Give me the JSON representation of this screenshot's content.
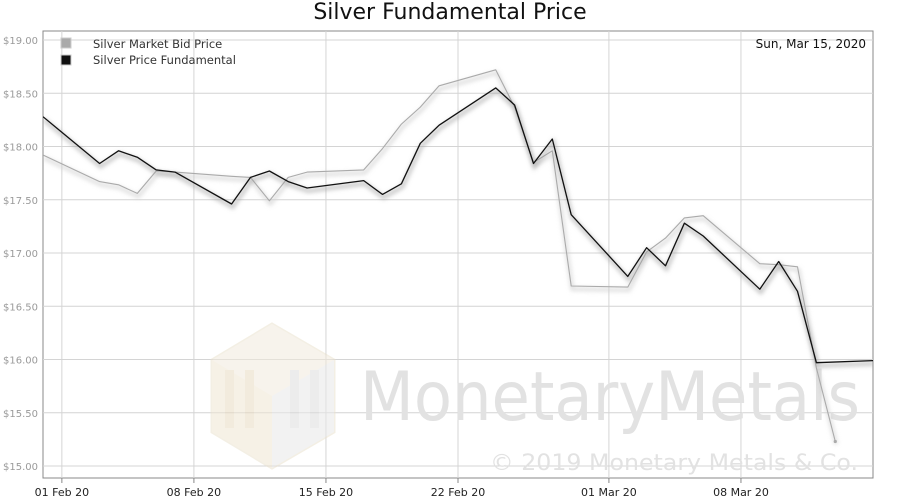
{
  "chart_data": {
    "type": "line",
    "title": "Silver Fundamental Price",
    "date_label": "Sun, Mar 15, 2020",
    "watermark": {
      "brand": "MonetaryMetals",
      "copyright": "© 2019 Monetary Metals & Co."
    },
    "ylim": [
      15.0,
      19.0
    ],
    "yticks": [
      "$15.00",
      "$15.50",
      "$16.00",
      "$16.50",
      "$17.00",
      "$17.50",
      "$18.00",
      "$18.50",
      "$19.00"
    ],
    "ytick_values": [
      15.0,
      15.5,
      16.0,
      16.5,
      17.0,
      17.5,
      18.0,
      18.5,
      19.0
    ],
    "xlim": [
      "2020-01-31",
      "2020-03-15"
    ],
    "xticks": [
      {
        "label": "01 Feb 20",
        "date": "2020-02-01"
      },
      {
        "label": "08 Feb 20",
        "date": "2020-02-08"
      },
      {
        "label": "15 Feb 20",
        "date": "2020-02-15"
      },
      {
        "label": "22 Feb 20",
        "date": "2020-02-22"
      },
      {
        "label": "01 Mar 20",
        "date": "2020-03-01"
      },
      {
        "label": "08 Mar 20",
        "date": "2020-03-08"
      }
    ],
    "legend_position": "top-left",
    "series": [
      {
        "name": "Silver Market Bid Price",
        "color": "#aaaaaa",
        "points": [
          [
            "2020-01-31",
            17.92
          ],
          [
            "2020-02-03",
            17.67
          ],
          [
            "2020-02-04",
            17.64
          ],
          [
            "2020-02-05",
            17.56
          ],
          [
            "2020-02-06",
            17.77
          ],
          [
            "2020-02-07",
            17.76
          ],
          [
            "2020-02-10",
            17.72
          ],
          [
            "2020-02-11",
            17.71
          ],
          [
            "2020-02-12",
            17.49
          ],
          [
            "2020-02-13",
            17.71
          ],
          [
            "2020-02-14",
            17.76
          ],
          [
            "2020-02-17",
            17.78
          ],
          [
            "2020-02-18",
            17.98
          ],
          [
            "2020-02-19",
            18.21
          ],
          [
            "2020-02-20",
            18.37
          ],
          [
            "2020-02-21",
            18.57
          ],
          [
            "2020-02-24",
            18.72
          ],
          [
            "2020-02-25",
            18.37
          ],
          [
            "2020-02-26",
            17.85
          ],
          [
            "2020-02-27",
            17.96
          ],
          [
            "2020-02-28",
            16.69
          ],
          [
            "2020-03-02",
            16.68
          ],
          [
            "2020-03-03",
            17.01
          ],
          [
            "2020-03-04",
            17.14
          ],
          [
            "2020-03-05",
            17.33
          ],
          [
            "2020-03-06",
            17.35
          ],
          [
            "2020-03-09",
            16.9
          ],
          [
            "2020-03-10",
            16.89
          ],
          [
            "2020-03-11",
            16.87
          ],
          [
            "2020-03-12",
            15.92
          ],
          [
            "2020-03-13",
            15.23
          ]
        ]
      },
      {
        "name": "Silver Price Fundamental",
        "color": "#111111",
        "points": [
          [
            "2020-01-31",
            18.28
          ],
          [
            "2020-02-03",
            17.84
          ],
          [
            "2020-02-04",
            17.96
          ],
          [
            "2020-02-05",
            17.9
          ],
          [
            "2020-02-06",
            17.78
          ],
          [
            "2020-02-07",
            17.76
          ],
          [
            "2020-02-10",
            17.46
          ],
          [
            "2020-02-11",
            17.71
          ],
          [
            "2020-02-12",
            17.77
          ],
          [
            "2020-02-13",
            17.67
          ],
          [
            "2020-02-14",
            17.61
          ],
          [
            "2020-02-17",
            17.68
          ],
          [
            "2020-02-18",
            17.55
          ],
          [
            "2020-02-19",
            17.65
          ],
          [
            "2020-02-20",
            18.03
          ],
          [
            "2020-02-21",
            18.2
          ],
          [
            "2020-02-24",
            18.55
          ],
          [
            "2020-02-25",
            18.39
          ],
          [
            "2020-02-26",
            17.84
          ],
          [
            "2020-02-27",
            18.07
          ],
          [
            "2020-02-28",
            17.36
          ],
          [
            "2020-03-02",
            16.78
          ],
          [
            "2020-03-03",
            17.05
          ],
          [
            "2020-03-04",
            16.88
          ],
          [
            "2020-03-05",
            17.28
          ],
          [
            "2020-03-06",
            17.16
          ],
          [
            "2020-03-09",
            16.66
          ],
          [
            "2020-03-10",
            16.92
          ],
          [
            "2020-03-11",
            16.64
          ],
          [
            "2020-03-12",
            15.97
          ],
          [
            "2020-03-15",
            15.99
          ]
        ]
      }
    ]
  }
}
